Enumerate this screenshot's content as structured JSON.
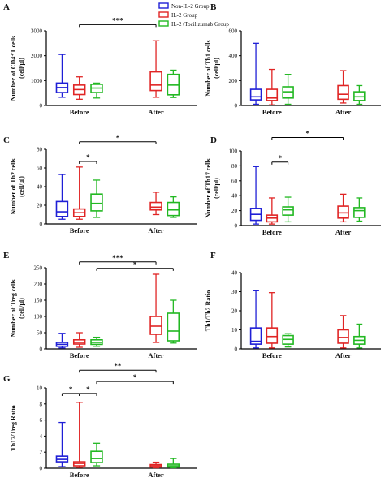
{
  "legend": [
    {
      "label": "Non-IL-2 Group",
      "color": "#1f1fd6"
    },
    {
      "label": "IL-2 Group",
      "color": "#e02424"
    },
    {
      "label": "IL-2+Tocilizumab Group",
      "color": "#22b822"
    }
  ],
  "chart_data": [
    {
      "type": "boxplot",
      "panel": "A",
      "ylabel": "Number of CD4⁺T cells (cell/μl)",
      "categories": [
        "Before",
        "After"
      ],
      "ylim": [
        0,
        3000
      ],
      "yticks": [
        0,
        1000,
        2000,
        3000
      ],
      "boxes": [
        {
          "series": 0,
          "group": 0,
          "min": 330,
          "q1": 520,
          "median": 720,
          "q3": 900,
          "max": 2050
        },
        {
          "series": 1,
          "group": 0,
          "min": 250,
          "q1": 440,
          "median": 640,
          "q3": 820,
          "max": 1150
        },
        {
          "series": 2,
          "group": 0,
          "min": 300,
          "q1": 520,
          "median": 700,
          "q3": 850,
          "max": 900
        },
        {
          "series": 1,
          "group": 1,
          "min": 330,
          "q1": 600,
          "median": 820,
          "q3": 1350,
          "max": 2600
        },
        {
          "series": 2,
          "group": 1,
          "min": 320,
          "q1": 430,
          "median": 820,
          "q3": 1250,
          "max": 1420
        }
      ],
      "significance": [
        {
          "from": [
            0,
            1
          ],
          "to": [
            1,
            1
          ],
          "label": "***",
          "y": 3250
        }
      ]
    },
    {
      "type": "boxplot",
      "panel": "B",
      "ylabel": "Number of Th1 cells (cell/μl)",
      "categories": [
        "Before",
        "After"
      ],
      "ylim": [
        0,
        600
      ],
      "yticks": [
        0,
        200,
        400,
        600
      ],
      "boxes": [
        {
          "series": 0,
          "group": 0,
          "min": 10,
          "q1": 45,
          "median": 70,
          "q3": 130,
          "max": 500
        },
        {
          "series": 1,
          "group": 0,
          "min": 5,
          "q1": 40,
          "median": 60,
          "q3": 130,
          "max": 290
        },
        {
          "series": 2,
          "group": 0,
          "min": 10,
          "q1": 60,
          "median": 110,
          "q3": 150,
          "max": 250
        },
        {
          "series": 1,
          "group": 1,
          "min": 20,
          "q1": 50,
          "median": 90,
          "q3": 160,
          "max": 280
        },
        {
          "series": 2,
          "group": 1,
          "min": 10,
          "q1": 40,
          "median": 70,
          "q3": 110,
          "max": 160
        }
      ],
      "significance": []
    },
    {
      "type": "boxplot",
      "panel": "C",
      "ylabel": "Number of Th2 cells (cell/μl)",
      "categories": [
        "Before",
        "After"
      ],
      "ylim": [
        0,
        80
      ],
      "yticks": [
        0,
        20,
        40,
        60,
        80
      ],
      "boxes": [
        {
          "series": 0,
          "group": 0,
          "min": 5,
          "q1": 8,
          "median": 13,
          "q3": 24,
          "max": 53
        },
        {
          "series": 1,
          "group": 0,
          "min": 5,
          "q1": 8,
          "median": 12,
          "q3": 16,
          "max": 61
        },
        {
          "series": 2,
          "group": 0,
          "min": 7,
          "q1": 14,
          "median": 22,
          "q3": 32,
          "max": 47
        },
        {
          "series": 1,
          "group": 1,
          "min": 10,
          "q1": 15,
          "median": 18,
          "q3": 23,
          "max": 34
        },
        {
          "series": 2,
          "group": 1,
          "min": 7,
          "q1": 9,
          "median": 15,
          "q3": 23,
          "max": 29
        }
      ],
      "significance": [
        {
          "from": [
            0,
            1
          ],
          "to": [
            1,
            1
          ],
          "label": "*",
          "y": 88
        },
        {
          "from": [
            0,
            1
          ],
          "to": [
            0,
            2
          ],
          "label": "*",
          "y": 67
        }
      ]
    },
    {
      "type": "boxplot",
      "panel": "D",
      "ylabel": "Number of Th17 cells (cell/μl)",
      "categories": [
        "Before",
        "After"
      ],
      "ylim": [
        0,
        100
      ],
      "yticks": [
        0,
        20,
        40,
        60,
        80,
        100
      ],
      "boxes": [
        {
          "series": 0,
          "group": 0,
          "min": 2,
          "q1": 7,
          "median": 15,
          "q3": 23,
          "max": 79
        },
        {
          "series": 1,
          "group": 0,
          "min": 2,
          "q1": 5,
          "median": 10,
          "q3": 14,
          "max": 37
        },
        {
          "series": 2,
          "group": 0,
          "min": 5,
          "q1": 14,
          "median": 21,
          "q3": 25,
          "max": 38
        },
        {
          "series": 1,
          "group": 1,
          "min": 5,
          "q1": 10,
          "median": 17,
          "q3": 26,
          "max": 42
        },
        {
          "series": 2,
          "group": 1,
          "min": 6,
          "q1": 11,
          "median": 20,
          "q3": 24,
          "max": 37
        }
      ],
      "significance": [
        {
          "from": [
            0,
            1
          ],
          "to": [
            1,
            1
          ],
          "label": "*",
          "y": 118
        },
        {
          "from": [
            0,
            1
          ],
          "to": [
            0,
            2
          ],
          "label": "*",
          "y": 85
        }
      ]
    },
    {
      "type": "boxplot",
      "panel": "E",
      "ylabel": "Number of Treg cells (cell/μl)",
      "categories": [
        "Before",
        "After"
      ],
      "ylim": [
        0,
        250
      ],
      "yticks": [
        0,
        50,
        100,
        150,
        200,
        250
      ],
      "boxes": [
        {
          "series": 0,
          "group": 0,
          "min": 3,
          "q1": 8,
          "median": 14,
          "q3": 20,
          "max": 48
        },
        {
          "series": 1,
          "group": 0,
          "min": 5,
          "q1": 15,
          "median": 20,
          "q3": 28,
          "max": 50
        },
        {
          "series": 2,
          "group": 0,
          "min": 8,
          "q1": 14,
          "median": 20,
          "q3": 28,
          "max": 36
        },
        {
          "series": 1,
          "group": 1,
          "min": 20,
          "q1": 45,
          "median": 70,
          "q3": 100,
          "max": 230
        },
        {
          "series": 2,
          "group": 1,
          "min": 18,
          "q1": 25,
          "median": 55,
          "q3": 110,
          "max": 150
        }
      ],
      "significance": [
        {
          "from": [
            0,
            1
          ],
          "to": [
            1,
            1
          ],
          "label": "***",
          "y": 268
        },
        {
          "from": [
            0,
            2
          ],
          "to": [
            1,
            2
          ],
          "label": "*",
          "y": 248
        }
      ]
    },
    {
      "type": "boxplot",
      "panel": "F",
      "ylabel": "Th1/Th2 Ratio",
      "categories": [
        "Before",
        "After"
      ],
      "ylim": [
        0,
        40
      ],
      "yticks": [
        0,
        10,
        20,
        30,
        40
      ],
      "boxes": [
        {
          "series": 0,
          "group": 0,
          "min": 0.5,
          "q1": 2.5,
          "median": 4,
          "q3": 11,
          "max": 30.5
        },
        {
          "series": 1,
          "group": 0,
          "min": 0.5,
          "q1": 3,
          "median": 6.5,
          "q3": 11,
          "max": 29.5
        },
        {
          "series": 2,
          "group": 0,
          "min": 1,
          "q1": 2.5,
          "median": 5,
          "q3": 7,
          "max": 8
        },
        {
          "series": 1,
          "group": 1,
          "min": 0.5,
          "q1": 3,
          "median": 6,
          "q3": 10,
          "max": 17.5
        },
        {
          "series": 2,
          "group": 1,
          "min": 0.5,
          "q1": 2.5,
          "median": 4.5,
          "q3": 6.5,
          "max": 13
        }
      ],
      "significance": []
    },
    {
      "type": "boxplot",
      "panel": "G",
      "ylabel": "Th17/Treg Ratio",
      "categories": [
        "Before",
        "After"
      ],
      "ylim": [
        0,
        10
      ],
      "yticks": [
        0,
        2,
        4,
        6,
        8,
        10
      ],
      "boxes": [
        {
          "series": 0,
          "group": 0,
          "min": 0.2,
          "q1": 0.8,
          "median": 1.1,
          "q3": 1.5,
          "max": 5.7
        },
        {
          "series": 1,
          "group": 0,
          "min": 0.1,
          "q1": 0.3,
          "median": 0.6,
          "q3": 0.8,
          "max": 8.2
        },
        {
          "series": 2,
          "group": 0,
          "min": 0.3,
          "q1": 0.7,
          "median": 1.2,
          "q3": 2.1,
          "max": 3.1
        },
        {
          "series": 1,
          "group": 1,
          "min": 0.05,
          "q1": 0.15,
          "median": 0.3,
          "q3": 0.45,
          "max": 0.75
        },
        {
          "series": 2,
          "group": 1,
          "min": 0.05,
          "q1": 0.15,
          "median": 0.3,
          "q3": 0.5,
          "max": 1.2
        }
      ],
      "significance": [
        {
          "from": [
            0,
            0
          ],
          "to": [
            0,
            1
          ],
          "label": "*",
          "y": 9.3
        },
        {
          "from": [
            0,
            1
          ],
          "to": [
            0,
            2
          ],
          "label": "*",
          "y": 9.3
        },
        {
          "from": [
            0,
            1
          ],
          "to": [
            1,
            1
          ],
          "label": "**",
          "y": 12.2
        },
        {
          "from": [
            0,
            2
          ],
          "to": [
            1,
            2
          ],
          "label": "*",
          "y": 10.8
        }
      ]
    }
  ]
}
